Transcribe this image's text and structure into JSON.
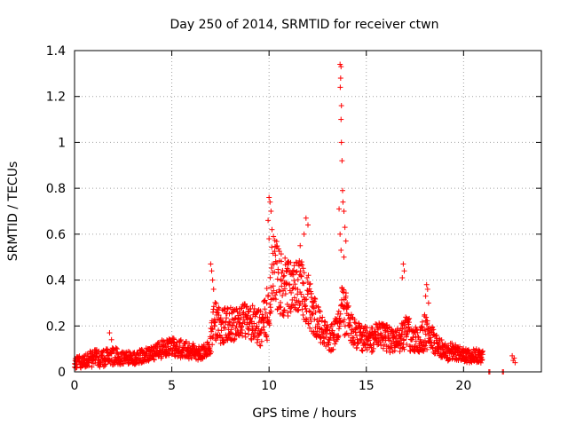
{
  "chart_data": {
    "type": "scatter",
    "title": "Day 250 of 2014, SRMTID for receiver ctwn",
    "xlabel": "GPS time / hours",
    "ylabel": "SRMTID / TECUs",
    "xlim": [
      0,
      24
    ],
    "ylim": [
      0,
      1.4
    ],
    "xticks": [
      0,
      5,
      10,
      15,
      20
    ],
    "yticks": [
      0,
      0.2,
      0.4,
      0.6,
      0.8,
      1,
      1.2,
      1.4
    ],
    "xtick_labels": [
      "0",
      "5",
      "10",
      "15",
      "20"
    ],
    "ytick_labels": [
      "0",
      "0.2",
      "0.4",
      "0.6",
      "0.8",
      "1",
      "1.2",
      "1.4"
    ],
    "grid": true,
    "marker": "+",
    "series": [
      {
        "name": "SRMTID",
        "color": "#ff0000",
        "envelope": {
          "hours": [
            0,
            0.5,
            1,
            1.5,
            2,
            2.5,
            3,
            3.5,
            4,
            4.5,
            5,
            5.5,
            6,
            6.5,
            6.9,
            7.2,
            7.5,
            8,
            8.5,
            9,
            9.3,
            9.6,
            9.9,
            10.2,
            10.5,
            10.8,
            11.1,
            11.4,
            11.7,
            12,
            12.3,
            12.6,
            12.9,
            13.2,
            13.5,
            13.8,
            14.1,
            14.4,
            14.7,
            15,
            15.3,
            15.6,
            15.9,
            16.2,
            16.5,
            16.8,
            17.1,
            17.4,
            17.7,
            18,
            18.3,
            18.6,
            18.9,
            19.2,
            19.5,
            19.8,
            20.1,
            20.4,
            20.7,
            21.0
          ],
          "mean": [
            0.04,
            0.05,
            0.06,
            0.06,
            0.07,
            0.06,
            0.06,
            0.07,
            0.08,
            0.1,
            0.11,
            0.1,
            0.09,
            0.08,
            0.1,
            0.22,
            0.2,
            0.21,
            0.22,
            0.22,
            0.2,
            0.19,
            0.25,
            0.45,
            0.4,
            0.36,
            0.4,
            0.38,
            0.35,
            0.32,
            0.25,
            0.2,
            0.16,
            0.15,
            0.18,
            0.28,
            0.22,
            0.17,
            0.15,
            0.14,
            0.14,
            0.16,
            0.15,
            0.14,
            0.13,
            0.15,
            0.17,
            0.15,
            0.13,
            0.17,
            0.15,
            0.12,
            0.1,
            0.08,
            0.09,
            0.08,
            0.07,
            0.07,
            0.07,
            0.06
          ],
          "spread": [
            0.03,
            0.03,
            0.04,
            0.04,
            0.04,
            0.03,
            0.03,
            0.03,
            0.03,
            0.04,
            0.04,
            0.04,
            0.04,
            0.03,
            0.04,
            0.1,
            0.08,
            0.08,
            0.08,
            0.08,
            0.08,
            0.08,
            0.12,
            0.16,
            0.15,
            0.14,
            0.14,
            0.13,
            0.13,
            0.12,
            0.09,
            0.07,
            0.06,
            0.06,
            0.07,
            0.12,
            0.08,
            0.06,
            0.06,
            0.06,
            0.06,
            0.06,
            0.06,
            0.06,
            0.05,
            0.06,
            0.08,
            0.06,
            0.05,
            0.08,
            0.06,
            0.05,
            0.04,
            0.04,
            0.04,
            0.03,
            0.03,
            0.03,
            0.03,
            0.03
          ]
        },
        "highlights": [
          [
            1.8,
            0.17
          ],
          [
            1.9,
            0.14
          ],
          [
            7.0,
            0.47
          ],
          [
            7.05,
            0.44
          ],
          [
            7.1,
            0.4
          ],
          [
            7.15,
            0.36
          ],
          [
            10.0,
            0.76
          ],
          [
            10.05,
            0.74
          ],
          [
            10.1,
            0.7
          ],
          [
            9.95,
            0.66
          ],
          [
            10.15,
            0.62
          ],
          [
            10.0,
            0.58
          ],
          [
            11.9,
            0.67
          ],
          [
            12.0,
            0.64
          ],
          [
            11.8,
            0.6
          ],
          [
            11.6,
            0.55
          ],
          [
            13.65,
            1.34
          ],
          [
            13.7,
            1.33
          ],
          [
            13.68,
            1.28
          ],
          [
            13.66,
            1.24
          ],
          [
            13.72,
            1.16
          ],
          [
            13.7,
            1.1
          ],
          [
            13.72,
            1.0
          ],
          [
            13.75,
            0.92
          ],
          [
            13.78,
            0.79
          ],
          [
            13.8,
            0.74
          ],
          [
            13.6,
            0.71
          ],
          [
            13.85,
            0.7
          ],
          [
            13.9,
            0.63
          ],
          [
            13.65,
            0.6
          ],
          [
            13.95,
            0.57
          ],
          [
            13.7,
            0.53
          ],
          [
            13.85,
            0.5
          ],
          [
            16.9,
            0.47
          ],
          [
            16.95,
            0.44
          ],
          [
            16.85,
            0.41
          ],
          [
            18.1,
            0.38
          ],
          [
            18.15,
            0.36
          ],
          [
            18.05,
            0.33
          ],
          [
            18.2,
            0.3
          ],
          [
            21.3,
            0.0
          ],
          [
            21.35,
            0.0
          ],
          [
            22.0,
            0.0
          ],
          [
            22.05,
            0.0
          ],
          [
            22.5,
            0.07
          ],
          [
            22.55,
            0.05
          ],
          [
            22.6,
            0.06
          ],
          [
            22.65,
            0.04
          ]
        ]
      }
    ]
  }
}
